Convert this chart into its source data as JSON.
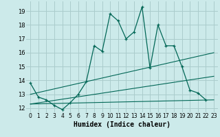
{
  "xlabel": "Humidex (Indice chaleur)",
  "bg_color": "#cceaea",
  "grid_color": "#aacccc",
  "line_color": "#006655",
  "xlim": [
    -0.5,
    23.5
  ],
  "ylim": [
    11.7,
    19.7
  ],
  "xticks": [
    0,
    1,
    2,
    3,
    4,
    5,
    6,
    7,
    8,
    9,
    10,
    11,
    12,
    13,
    14,
    15,
    16,
    17,
    18,
    19,
    20,
    21,
    22,
    23
  ],
  "yticks": [
    12,
    13,
    14,
    15,
    16,
    17,
    18,
    19
  ],
  "line1_x": [
    0,
    1,
    2,
    3,
    4,
    5,
    6,
    7,
    8,
    9,
    10,
    11,
    12,
    13,
    14,
    15,
    16,
    17,
    18,
    19,
    20,
    21,
    22
  ],
  "line1_y": [
    13.8,
    12.8,
    12.6,
    12.2,
    11.9,
    12.4,
    13.0,
    13.9,
    16.5,
    16.1,
    18.8,
    18.3,
    17.0,
    17.5,
    19.3,
    14.9,
    18.0,
    16.5,
    16.5,
    15.0,
    13.3,
    13.1,
    12.6
  ],
  "line2_x": [
    0,
    23
  ],
  "line2_y": [
    13.0,
    16.0
  ],
  "line3_x": [
    0,
    23
  ],
  "line3_y": [
    12.3,
    14.3
  ],
  "line4_x": [
    0,
    23
  ],
  "line4_y": [
    12.3,
    12.6
  ]
}
